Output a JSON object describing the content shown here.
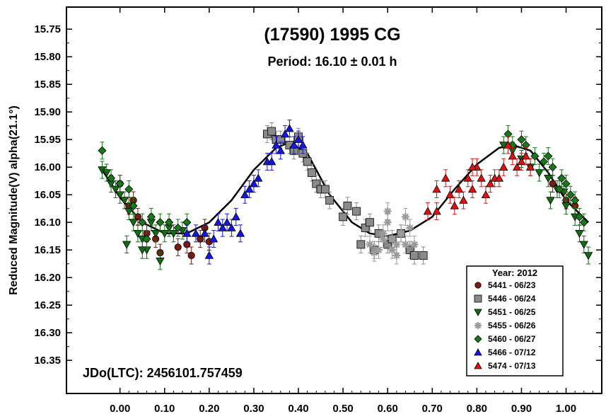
{
  "chart_data": {
    "type": "scatter",
    "title": "(17590) 1995 CG",
    "subtitle": "Period: 16.10 ± 0.01 h",
    "ylabel": "Reduced Magnitude(V) alpha(21.1°)",
    "xlabel": "",
    "annotation": "JDo(LTC): 2456101.757459",
    "x_ticks": [
      "0.00",
      "0.10",
      "0.20",
      "0.30",
      "0.40",
      "0.50",
      "0.60",
      "0.70",
      "0.80",
      "0.90",
      "1.00"
    ],
    "y_ticks": [
      "15.75",
      "15.80",
      "15.85",
      "15.90",
      "15.95",
      "16.00",
      "16.05",
      "16.10",
      "16.15",
      "16.20",
      "16.25",
      "16.30",
      "16.35"
    ],
    "xlim": [
      -0.12,
      1.08
    ],
    "ylim": [
      15.71,
      16.41
    ],
    "y_inverted": true,
    "legend_title": "Year: 2012",
    "legend_position": "bottom-right",
    "fit_curve": [
      [
        -0.04,
        16.005
      ],
      [
        0.0,
        16.055
      ],
      [
        0.05,
        16.1
      ],
      [
        0.1,
        16.12
      ],
      [
        0.15,
        16.12
      ],
      [
        0.2,
        16.1
      ],
      [
        0.25,
        16.06
      ],
      [
        0.3,
        16.005
      ],
      [
        0.35,
        15.965
      ],
      [
        0.38,
        15.955
      ],
      [
        0.42,
        15.975
      ],
      [
        0.47,
        16.05
      ],
      [
        0.52,
        16.1
      ],
      [
        0.56,
        16.12
      ],
      [
        0.6,
        16.125
      ],
      [
        0.65,
        16.115
      ],
      [
        0.7,
        16.09
      ],
      [
        0.75,
        16.04
      ],
      [
        0.8,
        15.995
      ],
      [
        0.85,
        15.965
      ],
      [
        0.88,
        15.96
      ],
      [
        0.92,
        15.97
      ],
      [
        0.96,
        16.01
      ],
      [
        1.0,
        16.06
      ],
      [
        1.05,
        16.1
      ]
    ],
    "series": [
      {
        "name": "5441 - 06/23",
        "marker": "circle",
        "color": "#7a1a12",
        "points": [
          [
            0.0,
            16.03
          ],
          [
            0.02,
            16.07
          ],
          [
            0.04,
            16.09
          ],
          [
            0.06,
            16.12
          ],
          [
            0.08,
            16.13
          ],
          [
            0.09,
            16.155
          ],
          [
            0.13,
            16.145
          ],
          [
            0.15,
            16.14
          ],
          [
            0.16,
            16.16
          ],
          [
            0.18,
            16.13
          ],
          [
            0.19,
            16.11
          ],
          [
            0.2,
            16.135
          ],
          [
            0.97,
            16.03
          ],
          [
            1.0,
            16.06
          ],
          [
            1.02,
            16.07
          ],
          [
            0.03,
            16.06
          ]
        ]
      },
      {
        "name": "5446 - 06/24",
        "marker": "square",
        "color": "#8a8a8a",
        "points": [
          [
            0.33,
            15.94
          ],
          [
            0.34,
            15.935
          ],
          [
            0.35,
            15.95
          ],
          [
            0.36,
            15.95
          ],
          [
            0.38,
            15.96
          ],
          [
            0.39,
            15.97
          ],
          [
            0.4,
            15.945
          ],
          [
            0.41,
            15.975
          ],
          [
            0.42,
            15.99
          ],
          [
            0.43,
            16.01
          ],
          [
            0.44,
            16.03
          ],
          [
            0.45,
            16.04
          ],
          [
            0.46,
            16.04
          ],
          [
            0.47,
            16.06
          ],
          [
            0.5,
            16.09
          ],
          [
            0.51,
            16.07
          ],
          [
            0.53,
            16.08
          ],
          [
            0.55,
            16.11
          ],
          [
            0.56,
            16.1
          ],
          [
            0.58,
            16.12
          ],
          [
            0.6,
            16.14
          ],
          [
            0.61,
            16.13
          ],
          [
            0.63,
            16.12
          ],
          [
            0.65,
            16.15
          ],
          [
            0.66,
            16.16
          ],
          [
            0.68,
            16.16
          ],
          [
            0.54,
            16.14
          ],
          [
            0.57,
            16.15
          ]
        ]
      },
      {
        "name": "5451 - 06/25",
        "marker": "triangle-down",
        "color": "#0f6e0f",
        "points": [
          [
            -0.04,
            16.005
          ],
          [
            -0.03,
            16.01
          ],
          [
            -0.02,
            16.03
          ],
          [
            -0.01,
            16.04
          ],
          [
            0.0,
            16.05
          ],
          [
            0.01,
            16.06
          ],
          [
            0.02,
            16.08
          ],
          [
            0.03,
            16.1
          ],
          [
            0.04,
            16.12
          ],
          [
            0.05,
            16.13
          ],
          [
            0.06,
            16.15
          ],
          [
            0.07,
            16.1
          ],
          [
            0.08,
            16.12
          ],
          [
            0.09,
            16.17
          ],
          [
            0.1,
            16.12
          ],
          [
            0.11,
            16.11
          ],
          [
            0.12,
            16.12
          ],
          [
            0.14,
            16.115
          ],
          [
            0.86,
            15.96
          ],
          [
            0.88,
            15.97
          ],
          [
            0.9,
            15.985
          ],
          [
            0.92,
            16.0
          ],
          [
            0.94,
            16.01
          ],
          [
            0.96,
            16.02
          ],
          [
            0.98,
            16.04
          ],
          [
            1.0,
            16.07
          ],
          [
            1.02,
            16.09
          ],
          [
            1.03,
            16.12
          ],
          [
            1.04,
            16.14
          ],
          [
            1.05,
            16.16
          ],
          [
            0.995,
            16.045
          ],
          [
            0.965,
            16.06
          ],
          [
            0.015,
            16.14
          ],
          [
            0.05,
            16.15
          ]
        ]
      },
      {
        "name": "5455 - 06/26",
        "marker": "asterisk",
        "color": "#9b9b9b",
        "points": [
          [
            0.56,
            16.14
          ],
          [
            0.57,
            16.155
          ],
          [
            0.58,
            16.15
          ],
          [
            0.59,
            16.12
          ],
          [
            0.6,
            16.1
          ],
          [
            0.6,
            16.08
          ],
          [
            0.61,
            16.13
          ],
          [
            0.62,
            16.14
          ],
          [
            0.62,
            16.16
          ],
          [
            0.63,
            16.12
          ],
          [
            0.64,
            16.14
          ],
          [
            0.64,
            16.09
          ],
          [
            0.65,
            16.11
          ],
          [
            0.66,
            16.14
          ],
          [
            0.61,
            16.15
          ],
          [
            0.59,
            16.13
          ]
        ]
      },
      {
        "name": "5460 - 06/27",
        "marker": "diamond",
        "color": "#157a15",
        "points": [
          [
            -0.04,
            15.97
          ],
          [
            -0.02,
            16.02
          ],
          [
            0.0,
            16.03
          ],
          [
            0.02,
            16.04
          ],
          [
            0.03,
            16.07
          ],
          [
            0.05,
            16.1
          ],
          [
            0.06,
            16.13
          ],
          [
            0.07,
            16.09
          ],
          [
            0.09,
            16.1
          ],
          [
            0.11,
            16.1
          ],
          [
            0.13,
            16.11
          ],
          [
            0.15,
            16.1
          ],
          [
            0.87,
            15.94
          ],
          [
            0.88,
            15.96
          ],
          [
            0.9,
            15.95
          ],
          [
            0.91,
            15.96
          ],
          [
            0.93,
            15.98
          ],
          [
            0.95,
            15.99
          ],
          [
            0.96,
            15.98
          ],
          [
            0.97,
            16.0
          ],
          [
            0.99,
            16.02
          ],
          [
            1.0,
            16.03
          ],
          [
            1.02,
            16.06
          ],
          [
            1.03,
            16.09
          ],
          [
            1.04,
            16.1
          ],
          [
            0.985,
            16.04
          ],
          [
            1.01,
            16.05
          ]
        ]
      },
      {
        "name": "5466 - 07/12",
        "marker": "triangle-up",
        "color": "#1414e6",
        "points": [
          [
            0.15,
            16.12
          ],
          [
            0.17,
            16.12
          ],
          [
            0.19,
            16.12
          ],
          [
            0.21,
            16.13
          ],
          [
            0.22,
            16.1
          ],
          [
            0.24,
            16.1
          ],
          [
            0.25,
            16.11
          ],
          [
            0.26,
            16.09
          ],
          [
            0.27,
            16.12
          ],
          [
            0.28,
            16.05
          ],
          [
            0.29,
            16.04
          ],
          [
            0.3,
            16.03
          ],
          [
            0.31,
            16.02
          ],
          [
            0.33,
            15.99
          ],
          [
            0.34,
            15.99
          ],
          [
            0.35,
            15.96
          ],
          [
            0.36,
            15.97
          ],
          [
            0.37,
            15.94
          ],
          [
            0.38,
            15.93
          ],
          [
            0.39,
            15.96
          ],
          [
            0.4,
            15.95
          ],
          [
            0.41,
            15.96
          ],
          [
            0.2,
            16.16
          ],
          [
            0.23,
            16.11
          ]
        ]
      },
      {
        "name": "5474 - 07/13",
        "marker": "triangle-up",
        "color": "#e01010",
        "points": [
          [
            0.69,
            16.08
          ],
          [
            0.71,
            16.04
          ],
          [
            0.73,
            16.02
          ],
          [
            0.74,
            16.05
          ],
          [
            0.75,
            16.07
          ],
          [
            0.76,
            16.04
          ],
          [
            0.77,
            16.06
          ],
          [
            0.78,
            16.02
          ],
          [
            0.79,
            16.04
          ],
          [
            0.8,
            16.0
          ],
          [
            0.81,
            16.02
          ],
          [
            0.82,
            16.05
          ],
          [
            0.83,
            16.03
          ],
          [
            0.84,
            16.02
          ],
          [
            0.85,
            16.02
          ],
          [
            0.86,
            16.0
          ],
          [
            0.87,
            15.96
          ],
          [
            0.88,
            15.98
          ],
          [
            0.89,
            16.0
          ],
          [
            0.9,
            15.99
          ],
          [
            0.91,
            15.98
          ],
          [
            0.92,
            16.0
          ],
          [
            0.71,
            16.08
          ],
          [
            0.79,
            16.0
          ]
        ]
      }
    ]
  }
}
